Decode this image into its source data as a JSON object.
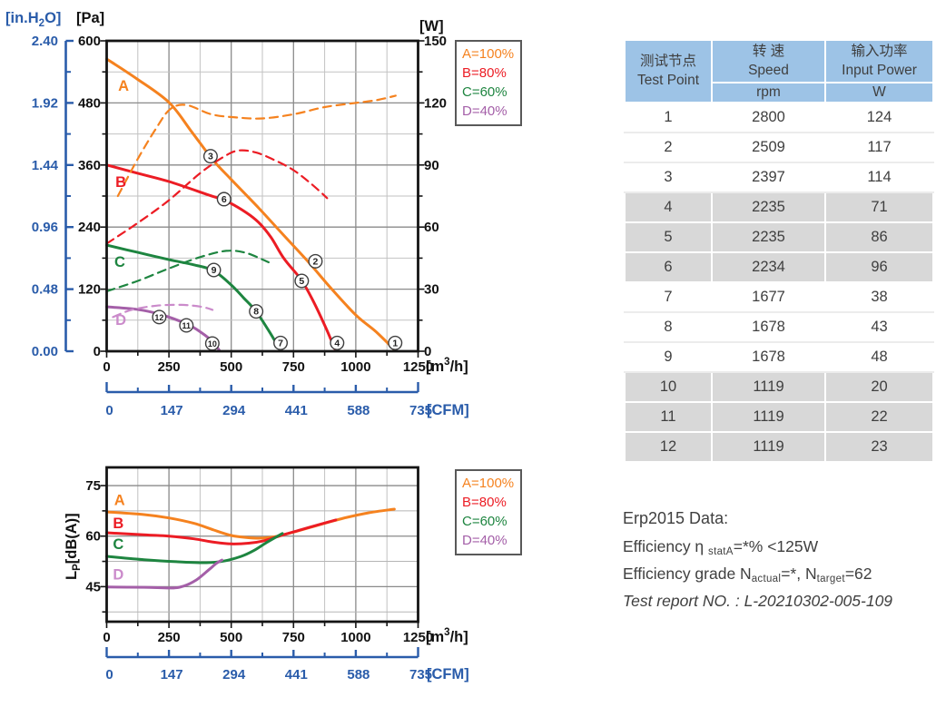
{
  "colors": {
    "orange": "#F5821F",
    "red": "#EC1C24",
    "green": "#1E8540",
    "purple": "#A45FA8",
    "purple_light": "#CB8BCB",
    "blue": "#2A5CAA",
    "axis_black": "#141414",
    "grid_major": "#8A8A8A",
    "grid_minor": "#C2C2C2",
    "marker_stroke": "#3F3F3F",
    "table_header_bg": "#9DC3E6",
    "table_row_gray": "#D8D8D8",
    "text_dark": "#3F3F3F"
  },
  "chart_data": [
    {
      "type": "line",
      "name": "pressure-and-input-power-vs-airflow",
      "x_axis": {
        "unit_parts": {
          "pre": "[m",
          "sup": "3",
          "post": "/h]"
        },
        "min": 0,
        "max": 1250,
        "major_ticks": [
          "0",
          "250",
          "500",
          "750",
          "1000",
          "1250"
        ],
        "minor_step": 125
      },
      "y_axis_pa": {
        "unit_label": "[Pa]",
        "min": 0,
        "max": 600,
        "major_ticks": [
          "600",
          "480",
          "360",
          "240",
          "120",
          "0"
        ],
        "minor_step": 60
      },
      "y_axis_inh2o": {
        "unit_parts": {
          "pre": "[in.H",
          "sub": "2",
          "post": "O]"
        },
        "tick_labels": [
          "2.40",
          "1.92",
          "1.44",
          "0.96",
          "0.48",
          "0.00"
        ]
      },
      "y_axis_w": {
        "unit_label": "[W]",
        "min": 0,
        "max": 150,
        "major_ticks": [
          "150",
          "120",
          "90",
          "60",
          "30",
          "0"
        ],
        "minor_step": 15
      },
      "cfm_axis": {
        "unit_label": "[CFM]",
        "tick_labels": [
          "0",
          "147",
          "294",
          "441",
          "588",
          "735"
        ]
      },
      "legend": [
        {
          "label": "A=100%",
          "color_key": "orange"
        },
        {
          "label": "B=80%",
          "color_key": "red"
        },
        {
          "label": "C=60%",
          "color_key": "green"
        },
        {
          "label": "D=40%",
          "color_key": "purple"
        }
      ],
      "series": [
        {
          "name": "A-pressure",
          "color_key": "orange",
          "dash": false,
          "axis": "pa",
          "points": [
            [
              0,
              565
            ],
            [
              120,
              527
            ],
            [
              250,
              481
            ],
            [
              340,
              425
            ],
            [
              428,
              369
            ],
            [
              500,
              332
            ],
            [
              610,
              277
            ],
            [
              713,
              223
            ],
            [
              811,
              172
            ],
            [
              900,
              122
            ],
            [
              1000,
              70
            ],
            [
              1080,
              38
            ],
            [
              1155,
              3
            ]
          ]
        },
        {
          "name": "B-pressure",
          "color_key": "red",
          "dash": false,
          "axis": "pa",
          "points": [
            [
              0,
              360
            ],
            [
              125,
              344
            ],
            [
              250,
              328
            ],
            [
              410,
              302
            ],
            [
              481,
              290
            ],
            [
              560,
              268
            ],
            [
              610,
              249
            ],
            [
              660,
              220
            ],
            [
              712,
              179
            ],
            [
              781,
              138
            ],
            [
              830,
              96
            ],
            [
              880,
              45
            ],
            [
              915,
              5
            ]
          ]
        },
        {
          "name": "C-pressure",
          "color_key": "green",
          "dash": false,
          "axis": "pa",
          "points": [
            [
              0,
              205
            ],
            [
              125,
              191
            ],
            [
              250,
              177
            ],
            [
              350,
              167
            ],
            [
              428,
              156
            ],
            [
              500,
              128
            ],
            [
              550,
              103
            ],
            [
              598,
              78
            ],
            [
              650,
              40
            ],
            [
              690,
              8
            ]
          ]
        },
        {
          "name": "D-pressure",
          "color_key": "purple",
          "dash": false,
          "axis": "pa",
          "points": [
            [
              0,
              86
            ],
            [
              120,
              81
            ],
            [
              210,
              72
            ],
            [
              320,
              53
            ],
            [
              380,
              36
            ],
            [
              424,
              19
            ],
            [
              452,
              2
            ]
          ]
        },
        {
          "name": "A-input-power",
          "color_key": "orange",
          "dash": true,
          "axis": "w",
          "points": [
            [
              45,
              75
            ],
            [
              125,
              93
            ],
            [
              200,
              108
            ],
            [
              255,
              117
            ],
            [
              320,
              119
            ],
            [
              420,
              114.5
            ],
            [
              520,
              113
            ],
            [
              625,
              112.5
            ],
            [
              750,
              114.5
            ],
            [
              875,
              118
            ],
            [
              1000,
              120
            ],
            [
              1090,
              121.5
            ],
            [
              1160,
              123.5
            ]
          ]
        },
        {
          "name": "B-input-power",
          "color_key": "red",
          "dash": true,
          "axis": "w",
          "points": [
            [
              0,
              52
            ],
            [
              125,
              62
            ],
            [
              250,
              73
            ],
            [
              375,
              86
            ],
            [
              470,
              94
            ],
            [
              530,
              97
            ],
            [
              600,
              96
            ],
            [
              680,
              92
            ],
            [
              750,
              87.5
            ],
            [
              820,
              81
            ],
            [
              885,
              74
            ]
          ]
        },
        {
          "name": "C-input-power",
          "color_key": "green",
          "dash": true,
          "axis": "w",
          "points": [
            [
              0,
              29
            ],
            [
              125,
              34
            ],
            [
              250,
              40
            ],
            [
              375,
              45.5
            ],
            [
              480,
              48.5
            ],
            [
              560,
              47.5
            ],
            [
              650,
              43
            ]
          ]
        },
        {
          "name": "D-input-power",
          "color_key": "purple_light",
          "dash": true,
          "axis": "w",
          "points": [
            [
              25,
              16.5
            ],
            [
              100,
              20
            ],
            [
              200,
              22
            ],
            [
              300,
              22.4
            ],
            [
              380,
              21.5
            ],
            [
              425,
              20
            ]
          ]
        }
      ],
      "curve_labels": [
        {
          "text": "A",
          "color_key": "orange",
          "x": 46,
          "y": 512
        },
        {
          "text": "B",
          "color_key": "red",
          "x": 35,
          "y": 326
        },
        {
          "text": "C",
          "color_key": "green",
          "x": 31,
          "y": 172
        },
        {
          "text": "D",
          "color_key": "purple_light",
          "x": 35,
          "y": 60
        }
      ],
      "markers": [
        {
          "label": "1",
          "x": 1158,
          "y": 16
        },
        {
          "label": "2",
          "x": 838,
          "y": 174
        },
        {
          "label": "3",
          "x": 417,
          "y": 377
        },
        {
          "label": "4",
          "x": 925,
          "y": 16
        },
        {
          "label": "5",
          "x": 783,
          "y": 136
        },
        {
          "label": "6",
          "x": 471,
          "y": 294
        },
        {
          "label": "7",
          "x": 698,
          "y": 16
        },
        {
          "label": "8",
          "x": 600,
          "y": 77
        },
        {
          "label": "9",
          "x": 430,
          "y": 157
        },
        {
          "label": "10",
          "x": 424,
          "y": 15
        },
        {
          "label": "11",
          "x": 320,
          "y": 50
        },
        {
          "label": "12",
          "x": 211,
          "y": 66
        }
      ]
    },
    {
      "type": "line",
      "name": "noise-level-vs-airflow",
      "x_axis": {
        "unit_parts": {
          "pre": "[m",
          "sup": "3",
          "post": "/h]"
        },
        "min": 0,
        "max": 1250,
        "major_ticks": [
          "0",
          "250",
          "500",
          "750",
          "1000",
          "1250"
        ],
        "minor_step": 125
      },
      "y_axis_db": {
        "label_parts": {
          "pre": "L",
          "sub": "P",
          "post": "[dB(A)]"
        },
        "min": 34.6,
        "max": 80.4,
        "major_ticks": [
          "75",
          "60",
          "45"
        ],
        "grid_step": 7.5
      },
      "cfm_axis": {
        "unit_label": "[CFM]",
        "tick_labels": [
          "0",
          "147",
          "294",
          "441",
          "588",
          "735"
        ]
      },
      "legend": [
        {
          "label": "A=100%",
          "color_key": "orange"
        },
        {
          "label": "B=80%",
          "color_key": "red"
        },
        {
          "label": "C=60%",
          "color_key": "green"
        },
        {
          "label": "D=40%",
          "color_key": "purple"
        }
      ],
      "series": [
        {
          "name": "A-noise",
          "color_key": "orange",
          "dash": false,
          "axis": "db",
          "points": [
            [
              0,
              67.2
            ],
            [
              150,
              66.4
            ],
            [
              250,
              65.4
            ],
            [
              350,
              63.8
            ],
            [
              430,
              61.8
            ],
            [
              500,
              60.2
            ],
            [
              560,
              59.6
            ],
            [
              620,
              59.4
            ],
            [
              680,
              59.9
            ],
            [
              750,
              61.2
            ],
            [
              850,
              63.3
            ],
            [
              950,
              65.3
            ],
            [
              1050,
              66.9
            ],
            [
              1155,
              68
            ]
          ]
        },
        {
          "name": "B-noise",
          "color_key": "red",
          "dash": false,
          "axis": "db",
          "points": [
            [
              0,
              61
            ],
            [
              150,
              60.4
            ],
            [
              250,
              60
            ],
            [
              350,
              59.2
            ],
            [
              430,
              58.2
            ],
            [
              500,
              57.7
            ],
            [
              570,
              57.9
            ],
            [
              630,
              58.6
            ],
            [
              700,
              60.2
            ],
            [
              780,
              61.9
            ],
            [
              860,
              63.6
            ],
            [
              920,
              64.8
            ]
          ]
        },
        {
          "name": "C-noise",
          "color_key": "green",
          "dash": false,
          "axis": "db",
          "points": [
            [
              0,
              54
            ],
            [
              150,
              53
            ],
            [
              280,
              52.4
            ],
            [
              400,
              52.1
            ],
            [
              470,
              52.6
            ],
            [
              540,
              54
            ],
            [
              590,
              55.7
            ],
            [
              640,
              58
            ],
            [
              705,
              60.8
            ]
          ]
        },
        {
          "name": "D-noise",
          "color_key": "purple",
          "dash": false,
          "axis": "db",
          "points": [
            [
              0,
              44.9
            ],
            [
              150,
              44.8
            ],
            [
              260,
              44.6
            ],
            [
              310,
              45.2
            ],
            [
              360,
              47
            ],
            [
              410,
              50
            ],
            [
              440,
              51.9
            ],
            [
              463,
              52.9
            ]
          ]
        }
      ],
      "curve_labels": [
        {
          "text": "A",
          "color_key": "orange",
          "x": 30,
          "y": 70.6
        },
        {
          "text": "B",
          "color_key": "red",
          "x": 25,
          "y": 63.7
        },
        {
          "text": "C",
          "color_key": "green",
          "x": 25,
          "y": 57.5
        },
        {
          "text": "D",
          "color_key": "purple_light",
          "x": 25,
          "y": 48.5
        }
      ],
      "markers": []
    }
  ],
  "table": {
    "header": {
      "col1_line1": "测试节点",
      "col1_line2": "Test Point",
      "col2_line1": "转 速",
      "col2_line2": "Speed",
      "col2_unit": "rpm",
      "col3_line1": "输入功率",
      "col3_line2": "Input Power",
      "col3_unit": "W"
    },
    "rows": [
      {
        "point": "1",
        "speed": "2800",
        "power": "124"
      },
      {
        "point": "2",
        "speed": "2509",
        "power": "117"
      },
      {
        "point": "3",
        "speed": "2397",
        "power": "114"
      },
      {
        "point": "4",
        "speed": "2235",
        "power": "71"
      },
      {
        "point": "5",
        "speed": "2235",
        "power": "86"
      },
      {
        "point": "6",
        "speed": "2234",
        "power": "96"
      },
      {
        "point": "7",
        "speed": "1677",
        "power": "38"
      },
      {
        "point": "8",
        "speed": "1678",
        "power": "43"
      },
      {
        "point": "9",
        "speed": "1678",
        "power": "48"
      },
      {
        "point": "10",
        "speed": "1119",
        "power": "20"
      },
      {
        "point": "11",
        "speed": "1119",
        "power": "22"
      },
      {
        "point": "12",
        "speed": "1119",
        "power": "23"
      }
    ]
  },
  "erp": {
    "line1": "Erp2015  Data:",
    "line2_pre": "Efficiency η ",
    "line2_sub": "statA",
    "line2_post": "=*%  <125W",
    "line3_pre": "Efficiency grade N",
    "line3_sub1": "actual",
    "line3_mid": "=*, N",
    "line3_sub2": "target",
    "line3_post": "=62",
    "line4": "Test report NO. : L-20210302-005-109"
  }
}
